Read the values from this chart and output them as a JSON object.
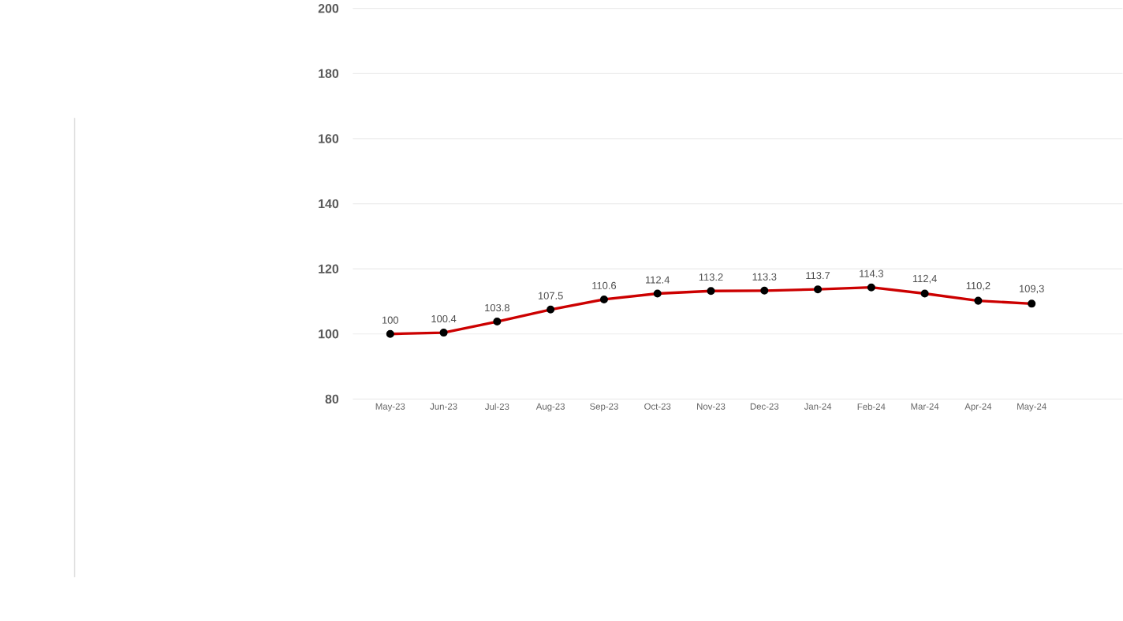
{
  "chart_data": {
    "type": "line",
    "categories": [
      "May-23",
      "Jun-23",
      "Jul-23",
      "Aug-23",
      "Sep-23",
      "Oct-23",
      "Nov-23",
      "Dec-23",
      "Jan-24",
      "Feb-24",
      "Mar-24",
      "Apr-24",
      "May-24"
    ],
    "series": [
      {
        "color": "#cc0000",
        "values": [
          100,
          100.4,
          103.8,
          107.5,
          110.6,
          112.4,
          113.2,
          113.3,
          113.7,
          114.3,
          112.4,
          110.2,
          109.3
        ],
        "value_labels": [
          "100",
          "100.4",
          "103.8",
          "107.5",
          "110.6",
          "112.4",
          "113.2",
          "113.3",
          "113.7",
          "114.3",
          "112,4",
          "110,2",
          "109,3"
        ]
      }
    ],
    "ylim": [
      80,
      200
    ],
    "yticks": [
      80,
      100,
      120,
      140,
      160,
      180,
      200
    ],
    "grid": "y",
    "marker": "circle",
    "line_style": "solid"
  }
}
